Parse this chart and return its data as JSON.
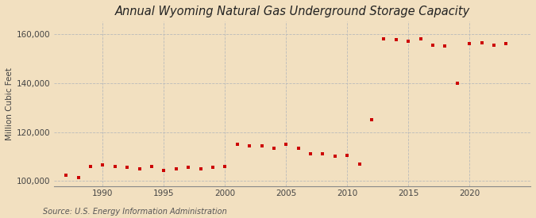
{
  "title": "Annual Wyoming Natural Gas Underground Storage Capacity",
  "ylabel": "Million Cubic Feet",
  "source": "Source: U.S. Energy Information Administration",
  "background_color": "#f2e0c0",
  "plot_background_color": "#f2e0c0",
  "marker_color": "#cc0000",
  "marker": "s",
  "markersize": 3.5,
  "xlim": [
    1986,
    2025
  ],
  "ylim": [
    98000,
    165000
  ],
  "yticks": [
    100000,
    120000,
    140000,
    160000
  ],
  "xticks": [
    1990,
    1995,
    2000,
    2005,
    2010,
    2015,
    2020
  ],
  "years": [
    1987,
    1988,
    1989,
    1990,
    1991,
    1992,
    1993,
    1994,
    1995,
    1996,
    1997,
    1998,
    1999,
    2000,
    2001,
    2002,
    2003,
    2004,
    2005,
    2006,
    2007,
    2008,
    2009,
    2010,
    2011,
    2012,
    2013,
    2014,
    2015,
    2016,
    2017,
    2018,
    2019,
    2020,
    2021,
    2022,
    2023
  ],
  "values": [
    102500,
    101500,
    106000,
    106500,
    106000,
    105500,
    105000,
    106000,
    104500,
    105000,
    105500,
    105000,
    105500,
    106000,
    115000,
    114500,
    114500,
    113500,
    115000,
    113500,
    111000,
    111000,
    110000,
    110500,
    107000,
    125000,
    158000,
    157500,
    157000,
    158000,
    155500,
    155000,
    140000,
    156000,
    156500,
    155500,
    156000
  ],
  "title_fontsize": 10.5,
  "ylabel_fontsize": 7.5,
  "tick_fontsize": 7.5,
  "source_fontsize": 7
}
